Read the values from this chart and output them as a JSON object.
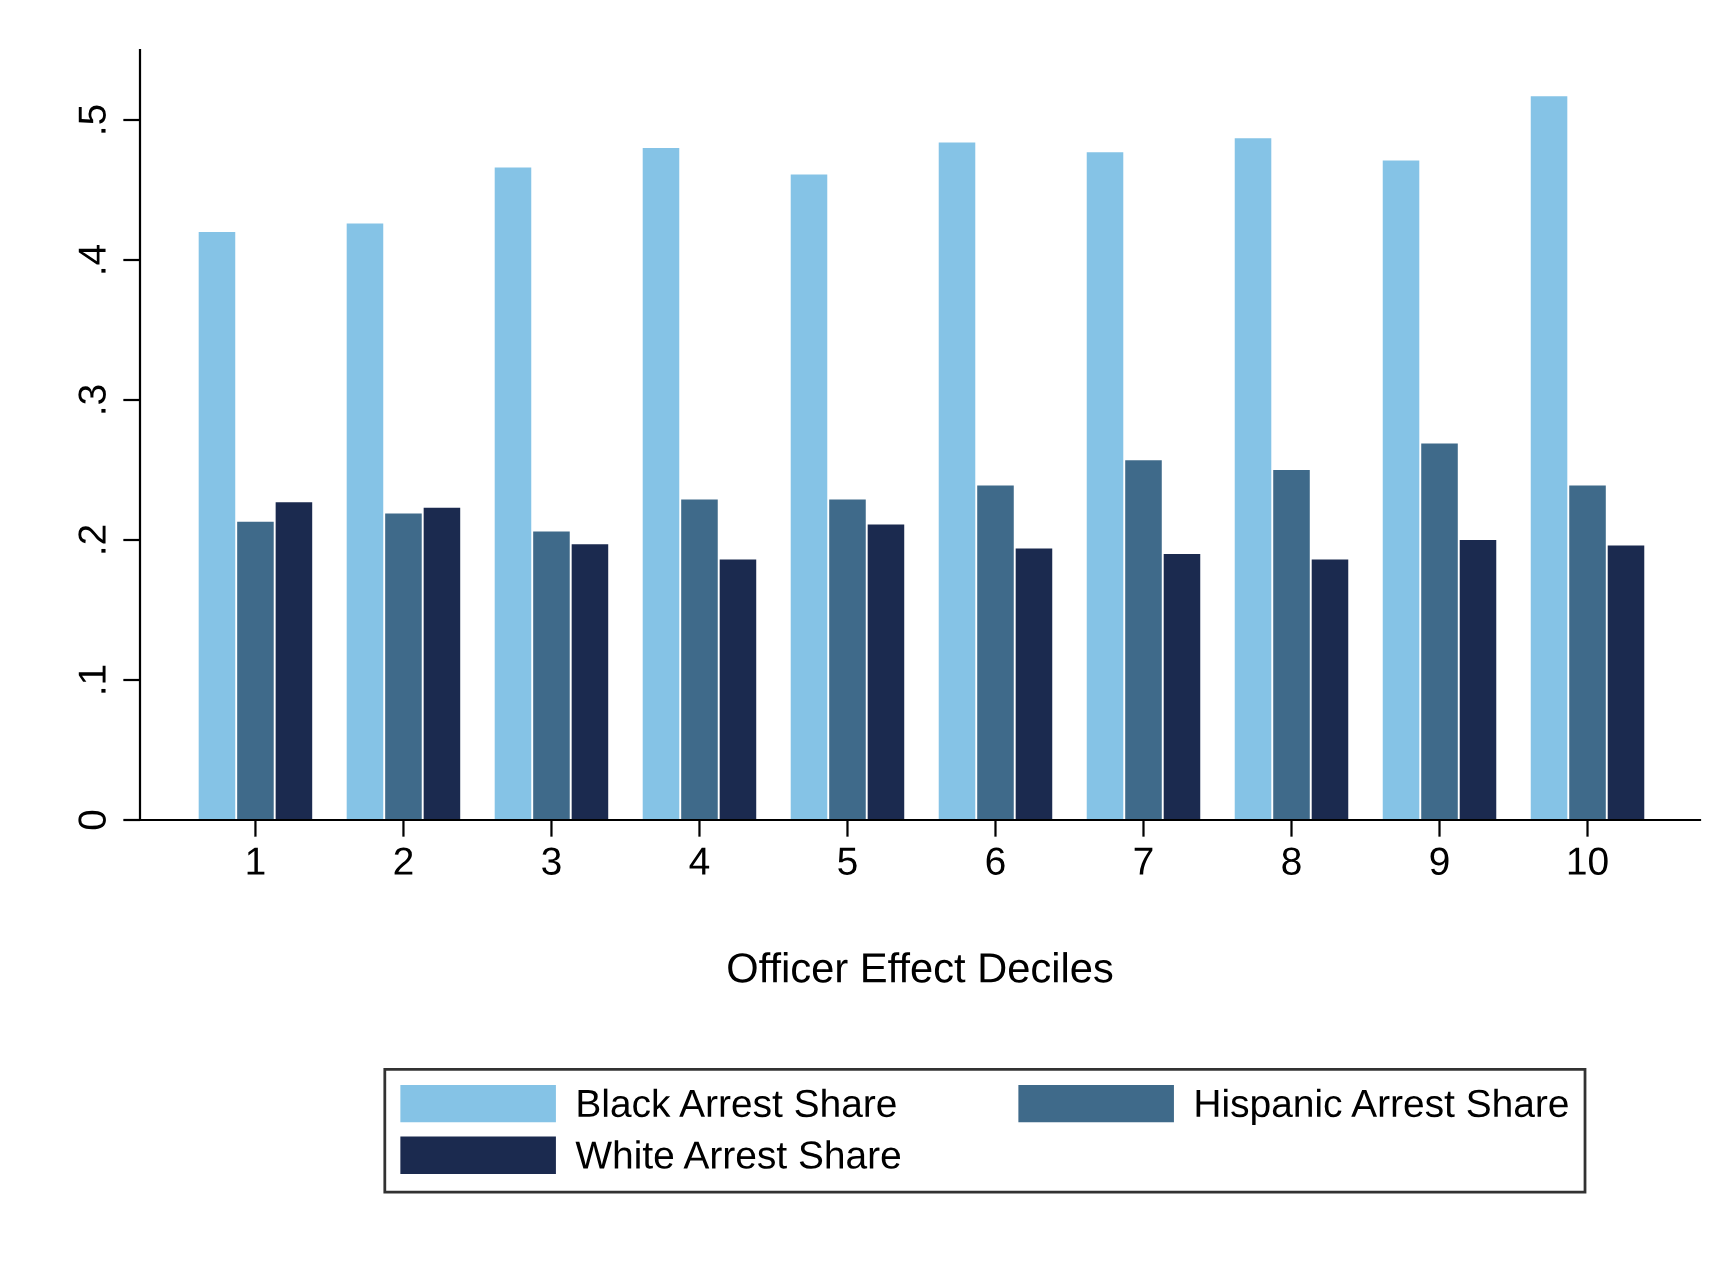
{
  "chart_data": {
    "type": "bar",
    "xlabel": "Officer Effect Deciles",
    "categories": [
      "1",
      "2",
      "3",
      "4",
      "5",
      "6",
      "7",
      "8",
      "9",
      "10"
    ],
    "series": [
      {
        "name": "Black Arrest Share",
        "color": "#85c3e6",
        "values": [
          0.42,
          0.426,
          0.466,
          0.48,
          0.461,
          0.484,
          0.477,
          0.487,
          0.471,
          0.517
        ]
      },
      {
        "name": "Hispanic Arrest Share",
        "color": "#3f6a8a",
        "values": [
          0.213,
          0.219,
          0.206,
          0.229,
          0.229,
          0.239,
          0.257,
          0.25,
          0.269,
          0.239
        ]
      },
      {
        "name": "White Arrest Share",
        "color": "#1b2a4f",
        "values": [
          0.227,
          0.223,
          0.197,
          0.186,
          0.211,
          0.194,
          0.19,
          0.186,
          0.2,
          0.196
        ]
      }
    ],
    "ylim": [
      0,
      0.55
    ],
    "yticks": [
      {
        "value": 0,
        "label": "0"
      },
      {
        "value": 0.1,
        "label": ".1"
      },
      {
        "value": 0.2,
        "label": ".2"
      },
      {
        "value": 0.3,
        "label": ".3"
      },
      {
        "value": 0.4,
        "label": ".4"
      },
      {
        "value": 0.5,
        "label": ".5"
      }
    ],
    "grid": false,
    "legend": "bottom"
  }
}
